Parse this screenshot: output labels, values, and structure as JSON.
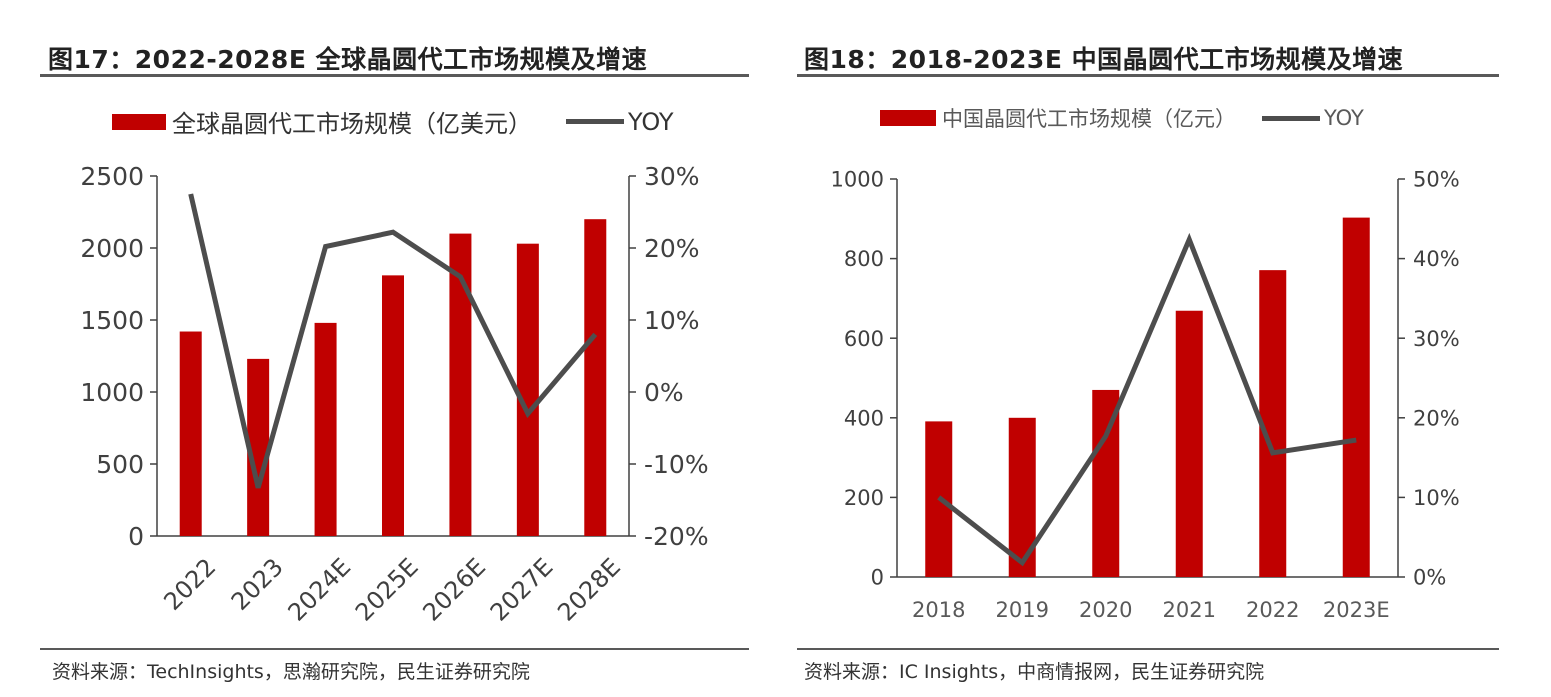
{
  "left": {
    "title": "图17：2022-2028E 全球晶圆代工市场规模及增速",
    "legend_bar": "全球晶圆代工市场规模（亿美元）",
    "legend_line": "YOY",
    "source": "资料来源：TechInsights，思瀚研究院，民生证券研究院"
  },
  "right": {
    "title": "图18：2018-2023E 中国晶圆代工市场规模及增速",
    "legend_bar": "中国晶圆代工市场规模（亿元）",
    "legend_line": "YOY",
    "source": "资料来源：IC Insights，中商情报网，民生证券研究院"
  },
  "colors": {
    "bar": "#c00000",
    "line": "#4d4d4d",
    "axis": "#404040"
  },
  "chart_data": [
    {
      "type": "bar",
      "title": "图17：2022-2028E 全球晶圆代工市场规模及增速",
      "categories": [
        "2022",
        "2023",
        "2024E",
        "2025E",
        "2026E",
        "2027E",
        "2028E"
      ],
      "series": [
        {
          "name": "全球晶圆代工市场规模（亿美元）",
          "type": "bar",
          "axis": "left",
          "values": [
            1420,
            1230,
            1480,
            1810,
            2100,
            2030,
            2200
          ]
        },
        {
          "name": "YOY",
          "type": "line",
          "axis": "right",
          "values": [
            27.5,
            -13.3,
            20.2,
            22.2,
            16.0,
            -3.0,
            8.0
          ]
        }
      ],
      "ylim_left": [
        0,
        2500
      ],
      "yticks_left": [
        "0",
        "500",
        "1000",
        "1500",
        "2000",
        "2500"
      ],
      "ylim_right": [
        -20,
        30
      ],
      "yticks_right": [
        "-20%",
        "-10%",
        "0%",
        "10%",
        "20%",
        "30%"
      ],
      "x_tick_rotation": "-45deg",
      "grid": false,
      "legend": "top"
    },
    {
      "type": "bar",
      "title": "图18：2018-2023E 中国晶圆代工市场规模及增速",
      "categories": [
        "2018",
        "2019",
        "2020",
        "2021",
        "2022",
        "2023E"
      ],
      "series": [
        {
          "name": "中国晶圆代工市场规模（亿元）",
          "type": "bar",
          "axis": "left",
          "values": [
            391,
            400,
            470,
            669,
            771,
            903
          ]
        },
        {
          "name": "YOY",
          "type": "line",
          "axis": "right",
          "values": [
            10.0,
            1.8,
            17.7,
            42.4,
            15.6,
            17.2
          ]
        }
      ],
      "ylim_left": [
        0,
        1000
      ],
      "yticks_left": [
        "0",
        "200",
        "400",
        "600",
        "800",
        "1000"
      ],
      "ylim_right": [
        0,
        50
      ],
      "yticks_right": [
        "0%",
        "10%",
        "20%",
        "30%",
        "40%",
        "50%"
      ],
      "grid": false,
      "legend": "top"
    }
  ]
}
